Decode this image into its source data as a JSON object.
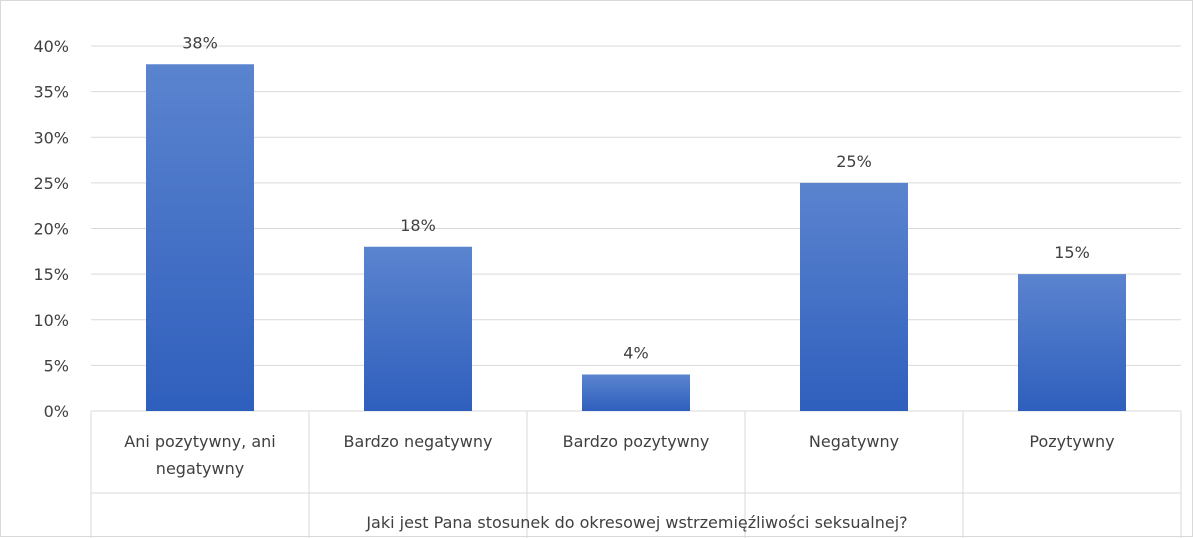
{
  "chart_data": {
    "type": "bar",
    "categories": [
      "Ani pozytywny, ani negatywny",
      "Bardzo negatywny",
      "Bardzo pozytywny",
      "Negatywny",
      "Pozytywny"
    ],
    "category_label_lines": [
      [
        "Ani pozytywny, ani",
        "negatywny"
      ],
      [
        "Bardzo negatywny"
      ],
      [
        "Bardzo pozytywny"
      ],
      [
        "Negatywny"
      ],
      [
        "Pozytywny"
      ]
    ],
    "values": [
      38,
      18,
      4,
      25,
      15
    ],
    "data_labels": [
      "38%",
      "18%",
      "4%",
      "25%",
      "15%"
    ],
    "y_ticks": [
      "0%",
      "5%",
      "10%",
      "15%",
      "20%",
      "25%",
      "30%",
      "35%",
      "40%"
    ],
    "ylim": [
      0,
      40
    ],
    "title": "",
    "xlabel": "Jaki jest Pana stosunek do okresowej wstrzemięźliwości seksualnej?",
    "ylabel": "",
    "grid": true,
    "legend": "none",
    "colors": {
      "bar_top": "#5b84cf",
      "bar_bottom": "#2f5fbd",
      "grid": "#d9d9d9",
      "text": "#404040"
    }
  }
}
